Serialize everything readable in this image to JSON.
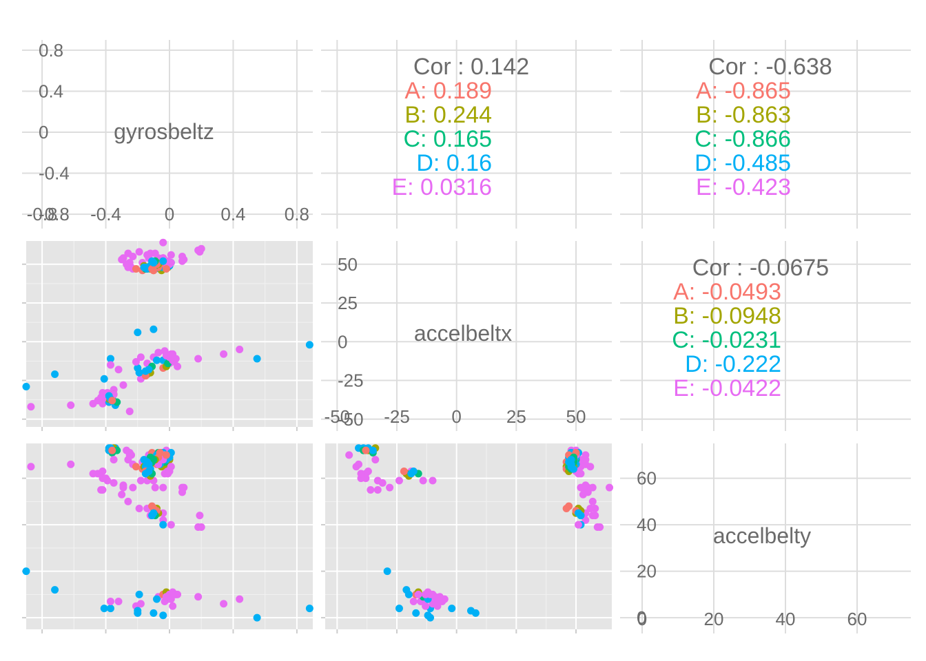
{
  "chart_data": {
    "type": "scatter",
    "title": "",
    "variables": [
      "gyrosbeltz",
      "accelbeltx",
      "accelbelty"
    ],
    "groups": [
      "A",
      "B",
      "C",
      "D",
      "E"
    ],
    "colors": {
      "A": "#F8766D",
      "B": "#A3A500",
      "C": "#00BF7D",
      "D": "#00B0F6",
      "E": "#E76BF3",
      "text": "#6b6b6b",
      "panel": "#e5e5e5"
    },
    "axes": {
      "gyrosbeltz": {
        "range": [
          -0.9,
          0.9
        ],
        "ticks": [
          -0.8,
          -0.4,
          0,
          0.4,
          0.8
        ],
        "tick_labels": [
          "-0.8",
          "-0.4",
          "0",
          "0.4",
          "0.8"
        ]
      },
      "accelbeltx": {
        "range": [
          -55,
          65
        ],
        "ticks": [
          -50,
          -25,
          0,
          25,
          50
        ],
        "tick_labels": [
          "-50",
          "-25",
          "0",
          "25",
          "50"
        ]
      },
      "accelbelty": {
        "range": [
          -5,
          75
        ],
        "ticks": [
          0,
          20,
          40,
          60
        ],
        "tick_labels": [
          "0",
          "20",
          "40",
          "60"
        ]
      }
    },
    "correlations": [
      {
        "row": 0,
        "col": 1,
        "overall_label": "Cor : 0.142",
        "groups": [
          {
            "group": "A",
            "label": "A: 0.189"
          },
          {
            "group": "B",
            "label": "B: 0.244"
          },
          {
            "group": "C",
            "label": "C: 0.165"
          },
          {
            "group": "D",
            "label": "D: 0.16"
          },
          {
            "group": "E",
            "label": "E: 0.0316"
          }
        ]
      },
      {
        "row": 0,
        "col": 2,
        "overall_label": "Cor : -0.638",
        "groups": [
          {
            "group": "A",
            "label": "A: -0.865"
          },
          {
            "group": "B",
            "label": "B: -0.863"
          },
          {
            "group": "C",
            "label": "C: -0.866"
          },
          {
            "group": "D",
            "label": "D: -0.485"
          },
          {
            "group": "E",
            "label": "E: -0.423"
          }
        ]
      },
      {
        "row": 1,
        "col": 2,
        "overall_label": "Cor : -0.0675",
        "groups": [
          {
            "group": "A",
            "label": "A: -0.0493"
          },
          {
            "group": "B",
            "label": "B: -0.0948"
          },
          {
            "group": "C",
            "label": "C: -0.0231"
          },
          {
            "group": "D",
            "label": "D: -0.222"
          },
          {
            "group": "E",
            "label": "E: -0.0422"
          }
        ]
      }
    ],
    "points": [
      {
        "g": "E",
        "z": -0.27,
        "x": 50,
        "y": 72
      },
      {
        "g": "E",
        "z": -0.25,
        "x": 51,
        "y": 71
      },
      {
        "g": "E",
        "z": -0.24,
        "x": 48,
        "y": 70
      },
      {
        "g": "E",
        "z": -0.26,
        "x": 48,
        "y": 68
      },
      {
        "g": "E",
        "z": -0.23,
        "x": 47,
        "y": 66
      },
      {
        "g": "E",
        "z": -0.23,
        "x": 55,
        "y": 56
      },
      {
        "g": "E",
        "z": -0.17,
        "x": 51,
        "y": 67
      },
      {
        "g": "E",
        "z": -0.13,
        "x": 54,
        "y": 70
      },
      {
        "g": "E",
        "z": -0.04,
        "x": 64,
        "y": 56
      },
      {
        "g": "E",
        "z": -0.02,
        "x": 48,
        "y": 72
      },
      {
        "g": "E",
        "z": -0.02,
        "x": 52,
        "y": 65
      },
      {
        "g": "E",
        "z": -0.05,
        "x": 52,
        "y": 68
      },
      {
        "g": "E",
        "z": 0.08,
        "x": 52,
        "y": 56
      },
      {
        "g": "E",
        "z": 0.09,
        "x": 53,
        "y": 56
      },
      {
        "g": "E",
        "z": 0.08,
        "x": 55,
        "y": 54
      },
      {
        "g": "A",
        "z": -0.11,
        "x": 48,
        "y": 71
      },
      {
        "g": "A",
        "z": -0.1,
        "x": 46,
        "y": 67
      },
      {
        "g": "A",
        "z": -0.06,
        "x": 47,
        "y": 66
      },
      {
        "g": "A",
        "z": -0.05,
        "x": 50,
        "y": 71
      },
      {
        "g": "A",
        "z": -0.08,
        "x": 49,
        "y": 66
      },
      {
        "g": "B",
        "z": -0.04,
        "x": 49,
        "y": 70
      },
      {
        "g": "B",
        "z": -0.05,
        "x": 46,
        "y": 65
      },
      {
        "g": "B",
        "z": -0.03,
        "x": 48,
        "y": 66
      },
      {
        "g": "B",
        "z": -0.01,
        "x": 48,
        "y": 67
      },
      {
        "g": "B",
        "z": 0.0,
        "x": 49,
        "y": 68
      },
      {
        "g": "C",
        "z": -0.06,
        "x": 48,
        "y": 70
      },
      {
        "g": "C",
        "z": -0.04,
        "x": 49,
        "y": 69
      },
      {
        "g": "C",
        "z": -0.05,
        "x": 50,
        "y": 68
      },
      {
        "g": "C",
        "z": -0.03,
        "x": 49,
        "y": 67
      },
      {
        "g": "C",
        "z": -0.07,
        "x": 48,
        "y": 71
      },
      {
        "g": "D",
        "z": -0.09,
        "x": 47,
        "y": 69
      },
      {
        "g": "D",
        "z": -0.08,
        "x": 49,
        "y": 70
      },
      {
        "g": "D",
        "z": -0.07,
        "x": 50,
        "y": 69
      },
      {
        "g": "D",
        "z": -0.04,
        "x": 48,
        "y": 71
      },
      {
        "g": "D",
        "z": -0.02,
        "x": 49,
        "y": 68
      },
      {
        "g": "D",
        "z": 0.0,
        "x": 49,
        "y": 69
      },
      {
        "g": "D",
        "z": 0.01,
        "x": 51,
        "y": 71
      },
      {
        "g": "D",
        "z": -0.06,
        "x": 50,
        "y": 66
      },
      {
        "g": "E",
        "z": -0.07,
        "x": 54,
        "y": 66
      },
      {
        "g": "E",
        "z": -0.03,
        "x": 51,
        "y": 62
      },
      {
        "g": "E",
        "z": -0.01,
        "x": 52,
        "y": 62
      },
      {
        "g": "E",
        "z": 0.0,
        "x": 50,
        "y": 63
      },
      {
        "g": "E",
        "z": 0.01,
        "x": 56,
        "y": 65
      },
      {
        "g": "E",
        "z": -0.04,
        "x": 54,
        "y": 68
      },
      {
        "g": "E",
        "z": -0.03,
        "x": 50,
        "y": 70
      },
      {
        "g": "A",
        "z": -0.21,
        "x": 47,
        "y": 65
      },
      {
        "g": "A",
        "z": -0.17,
        "x": 46,
        "y": 64
      },
      {
        "g": "A",
        "z": -0.06,
        "x": 50,
        "y": 71
      },
      {
        "g": "A",
        "z": -0.07,
        "x": 48,
        "y": 69
      },
      {
        "g": "A",
        "z": -0.02,
        "x": 47,
        "y": 70
      },
      {
        "g": "B",
        "z": -0.14,
        "x": 47,
        "y": 63
      },
      {
        "g": "B",
        "z": -0.16,
        "x": 49,
        "y": 65
      },
      {
        "g": "B",
        "z": -0.11,
        "x": 48,
        "y": 67
      },
      {
        "g": "B",
        "z": -0.09,
        "x": 49,
        "y": 68
      },
      {
        "g": "B",
        "z": -0.12,
        "x": 47,
        "y": 66
      },
      {
        "g": "C",
        "z": -0.13,
        "x": 48,
        "y": 64
      },
      {
        "g": "C",
        "z": -0.11,
        "x": 49,
        "y": 67
      },
      {
        "g": "C",
        "z": -0.15,
        "x": 47,
        "y": 65
      },
      {
        "g": "C",
        "z": -0.1,
        "x": 48,
        "y": 68
      },
      {
        "g": "C",
        "z": -0.12,
        "x": 49,
        "y": 69
      },
      {
        "g": "D",
        "z": -0.16,
        "x": 48,
        "y": 68
      },
      {
        "g": "D",
        "z": -0.14,
        "x": 47,
        "y": 67
      },
      {
        "g": "D",
        "z": -0.13,
        "x": 48,
        "y": 66
      },
      {
        "g": "D",
        "z": -0.12,
        "x": 49,
        "y": 64
      },
      {
        "g": "D",
        "z": -0.15,
        "x": 48,
        "y": 65
      },
      {
        "g": "E",
        "z": -0.29,
        "x": 54,
        "y": 57
      },
      {
        "g": "E",
        "z": -0.26,
        "x": 57,
        "y": 50
      },
      {
        "g": "E",
        "z": -0.3,
        "x": 53,
        "y": 53
      },
      {
        "g": "E",
        "z": -0.19,
        "x": 58,
        "y": 47
      },
      {
        "g": "E",
        "z": -0.12,
        "x": 57,
        "y": 44
      },
      {
        "g": "E",
        "z": -0.04,
        "x": 54,
        "y": 45
      },
      {
        "g": "E",
        "z": -0.04,
        "x": 54,
        "y": 42
      },
      {
        "g": "E",
        "z": -0.09,
        "x": 57,
        "y": 56
      },
      {
        "g": "E",
        "z": -0.14,
        "x": 56,
        "y": 47
      },
      {
        "g": "B",
        "z": -0.08,
        "x": 51,
        "y": 47
      },
      {
        "g": "B",
        "z": -0.09,
        "x": 52,
        "y": 46
      },
      {
        "g": "B",
        "z": -0.07,
        "x": 50,
        "y": 45
      },
      {
        "g": "A",
        "z": -0.1,
        "x": 46,
        "y": 47
      },
      {
        "g": "A",
        "z": -0.11,
        "x": 47,
        "y": 48
      },
      {
        "g": "A",
        "z": -0.08,
        "x": 50,
        "y": 46
      },
      {
        "g": "C",
        "z": -0.09,
        "x": 52,
        "y": 44
      },
      {
        "g": "C",
        "z": -0.1,
        "x": 51,
        "y": 45
      },
      {
        "g": "D",
        "z": -0.1,
        "x": 51,
        "y": 45
      },
      {
        "g": "D",
        "z": -0.11,
        "x": 52,
        "y": 44
      },
      {
        "g": "D",
        "z": -0.04,
        "x": 52,
        "y": 40
      },
      {
        "g": "E",
        "z": 0.01,
        "x": 51,
        "y": 40
      },
      {
        "g": "E",
        "z": 0.19,
        "x": 58,
        "y": 44
      },
      {
        "g": "E",
        "z": 0.18,
        "x": 59,
        "y": 39
      },
      {
        "g": "E",
        "z": 0.2,
        "x": 60,
        "y": 39
      },
      {
        "g": "E",
        "z": -0.45,
        "x": -38,
        "y": 62
      },
      {
        "g": "E",
        "z": -0.42,
        "x": -40,
        "y": 60
      },
      {
        "g": "E",
        "z": -0.4,
        "x": -38,
        "y": 60
      },
      {
        "g": "E",
        "z": -0.39,
        "x": -33,
        "y": 59
      },
      {
        "g": "E",
        "z": -0.35,
        "x": -31,
        "y": 58
      },
      {
        "g": "E",
        "z": -0.29,
        "x": -28,
        "y": 56
      },
      {
        "g": "E",
        "z": -0.18,
        "x": -24,
        "y": 59
      },
      {
        "g": "E",
        "z": -0.13,
        "x": -19,
        "y": 63
      },
      {
        "g": "E",
        "z": -0.14,
        "x": -14,
        "y": 59
      },
      {
        "g": "E",
        "z": -0.1,
        "x": -10,
        "y": 59
      },
      {
        "g": "E",
        "z": -0.43,
        "x": -36,
        "y": 55
      },
      {
        "g": "E",
        "z": -0.42,
        "x": -33,
        "y": 55
      },
      {
        "g": "B",
        "z": -0.14,
        "x": -21,
        "y": 62
      },
      {
        "g": "B",
        "z": -0.12,
        "x": -20,
        "y": 61
      },
      {
        "g": "A",
        "z": -0.15,
        "x": -22,
        "y": 63
      },
      {
        "g": "C",
        "z": -0.11,
        "x": -16,
        "y": 62
      },
      {
        "g": "D",
        "z": -0.13,
        "x": -18,
        "y": 63
      },
      {
        "g": "D",
        "z": -0.15,
        "x": -19,
        "y": 62
      },
      {
        "g": "D",
        "z": -0.38,
        "x": -39,
        "y": 73
      },
      {
        "g": "D",
        "z": -0.36,
        "x": -36,
        "y": 72
      },
      {
        "g": "D",
        "z": -0.34,
        "x": -41,
        "y": 73
      },
      {
        "g": "B",
        "z": -0.38,
        "x": -37,
        "y": 72
      },
      {
        "g": "B",
        "z": -0.35,
        "x": -34,
        "y": 73
      },
      {
        "g": "C",
        "z": -0.36,
        "x": -35,
        "y": 71
      },
      {
        "g": "C",
        "z": -0.33,
        "x": -39,
        "y": 72
      },
      {
        "g": "E",
        "z": -0.87,
        "x": -42,
        "y": 65
      },
      {
        "g": "E",
        "z": -0.62,
        "x": -41,
        "y": 66
      },
      {
        "g": "E",
        "z": -0.48,
        "x": -40,
        "y": 62
      },
      {
        "g": "E",
        "z": -0.42,
        "x": -37,
        "y": 63
      },
      {
        "g": "E",
        "z": -0.35,
        "x": -34,
        "y": 68
      },
      {
        "g": "E",
        "z": -0.25,
        "x": -45,
        "y": 70
      },
      {
        "g": "D",
        "z": -0.38,
        "x": -35,
        "y": 72
      },
      {
        "g": "D",
        "z": -0.37,
        "x": -37,
        "y": 73
      },
      {
        "g": "A",
        "z": -0.36,
        "x": -38,
        "y": 72
      },
      {
        "g": "D",
        "z": -0.9,
        "x": -29,
        "y": 20
      },
      {
        "g": "D",
        "z": -0.72,
        "x": -21,
        "y": 12
      },
      {
        "g": "D",
        "z": -0.41,
        "x": -24,
        "y": 4
      },
      {
        "g": "D",
        "z": -0.2,
        "x": -17,
        "y": 2
      },
      {
        "g": "D",
        "z": -0.04,
        "x": -12,
        "y": 1
      },
      {
        "g": "D",
        "z": 0.55,
        "x": -11,
        "y": 0
      },
      {
        "g": "D",
        "z": 0.88,
        "x": -2,
        "y": 4
      },
      {
        "g": "D",
        "z": -0.37,
        "x": -11,
        "y": 4
      },
      {
        "g": "E",
        "z": -0.37,
        "x": -15,
        "y": 7
      },
      {
        "g": "E",
        "z": -0.21,
        "x": -13,
        "y": 5
      },
      {
        "g": "E",
        "z": -0.18,
        "x": -10,
        "y": 6
      },
      {
        "g": "E",
        "z": -0.03,
        "x": -6,
        "y": 7
      },
      {
        "g": "E",
        "z": 0.0,
        "x": -14,
        "y": 8
      },
      {
        "g": "E",
        "z": 0.02,
        "x": -8,
        "y": 5
      },
      {
        "g": "E",
        "z": 0.18,
        "x": -11,
        "y": 9
      },
      {
        "g": "E",
        "z": 0.34,
        "x": -8,
        "y": 6
      },
      {
        "g": "E",
        "z": 0.44,
        "x": -5,
        "y": 8
      },
      {
        "g": "E",
        "z": -0.32,
        "x": -18,
        "y": 7
      },
      {
        "g": "E",
        "z": -0.07,
        "x": -7,
        "y": 9
      },
      {
        "g": "A",
        "z": -0.04,
        "x": -17,
        "y": 10
      },
      {
        "g": "B",
        "z": -0.02,
        "x": -16,
        "y": 11
      },
      {
        "g": "C",
        "z": -0.01,
        "x": -14,
        "y": 9
      },
      {
        "g": "D",
        "z": -0.08,
        "x": -12,
        "y": 8
      },
      {
        "g": "D",
        "z": -0.19,
        "x": -20,
        "y": 10
      },
      {
        "g": "E",
        "z": 0.0,
        "x": -10,
        "y": 10
      },
      {
        "g": "E",
        "z": 0.02,
        "x": -12,
        "y": 11
      },
      {
        "g": "E",
        "z": -0.02,
        "x": -9,
        "y": 9
      },
      {
        "g": "E",
        "z": 0.04,
        "x": -11,
        "y": 10
      },
      {
        "g": "E",
        "z": 0.01,
        "x": -8,
        "y": 8
      },
      {
        "g": "E",
        "z": 0.03,
        "x": -13,
        "y": 10
      },
      {
        "g": "E",
        "z": 0.05,
        "x": -16,
        "y": 10
      },
      {
        "g": "D",
        "z": -0.2,
        "x": 6,
        "y": 3
      },
      {
        "g": "D",
        "z": -0.1,
        "x": 8,
        "y": 2
      }
    ]
  }
}
